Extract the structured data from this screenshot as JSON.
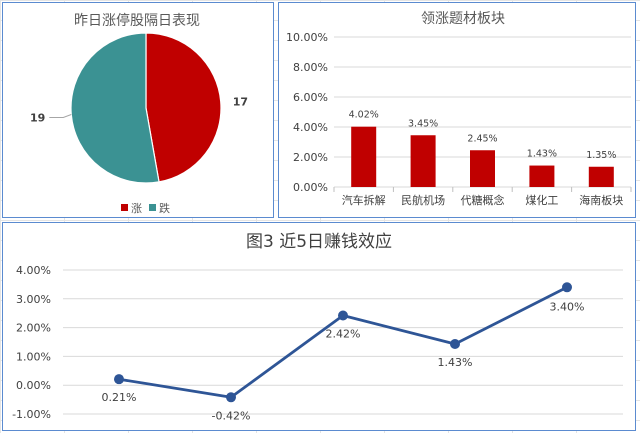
{
  "charts": {
    "pie": {
      "title": "昨日涨停股隔日表现",
      "legend": [
        {
          "label": "涨",
          "color": "#c00000"
        },
        {
          "label": "跌",
          "color": "#3b9293"
        }
      ]
    },
    "bar": {
      "title": "领涨题材板块",
      "color": "#c00000"
    },
    "line": {
      "title": "图3 近5日赚钱效应",
      "color": "#2e5596"
    }
  },
  "chart_data": [
    {
      "type": "pie",
      "title": "昨日涨停股隔日表现",
      "categories": [
        "涨",
        "跌"
      ],
      "values": [
        17,
        19
      ],
      "data_labels": [
        "17",
        "19"
      ],
      "colors": [
        "#c00000",
        "#3b9293"
      ],
      "legend": "bottom"
    },
    {
      "type": "bar",
      "title": "领涨题材板块",
      "categories": [
        "汽车拆解",
        "民航机场",
        "代糖概念",
        "煤化工",
        "海南板块"
      ],
      "values": [
        4.02,
        3.45,
        2.45,
        1.43,
        1.35
      ],
      "data_labels": [
        "4.02%",
        "3.45%",
        "2.45%",
        "1.43%",
        "1.35%"
      ],
      "ylim": [
        0,
        10
      ],
      "yticks": [
        "0.00%",
        "2.00%",
        "4.00%",
        "6.00%",
        "8.00%",
        "10.00%"
      ],
      "grid": true,
      "color": "#c00000"
    },
    {
      "type": "line",
      "title": "图3 近5日赚钱效应",
      "values": [
        0.21,
        -0.42,
        2.42,
        1.43,
        3.4
      ],
      "data_labels": [
        "0.21%",
        "-0.42%",
        "2.42%",
        "1.43%",
        "3.40%"
      ],
      "ylim": [
        -1,
        4
      ],
      "yticks": [
        "-1.00%",
        "0.00%",
        "1.00%",
        "2.00%",
        "3.00%",
        "4.00%"
      ],
      "grid": true,
      "color": "#2e5596"
    }
  ]
}
